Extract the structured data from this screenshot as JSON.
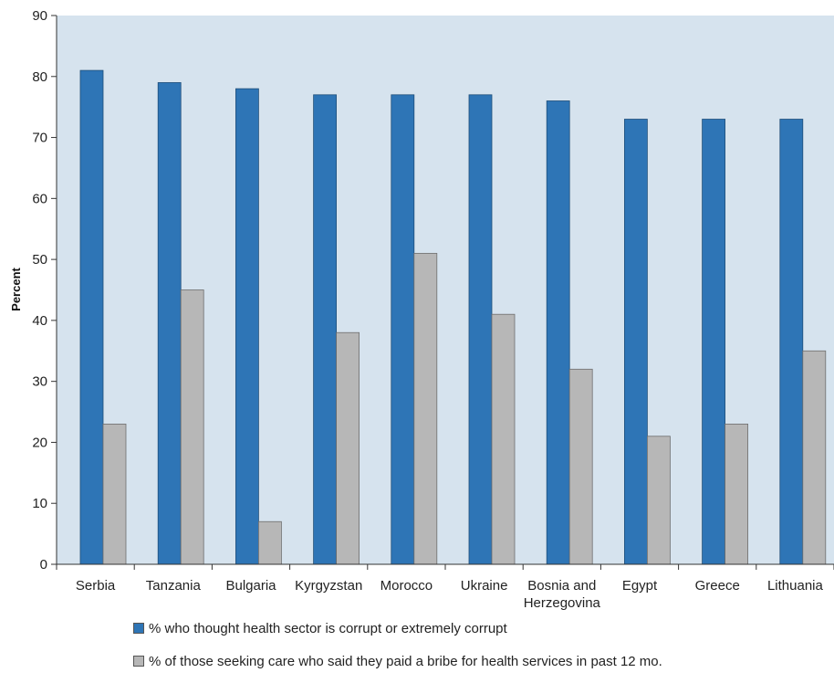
{
  "chart_data": {
    "type": "bar",
    "title": "",
    "xlabel": "",
    "ylabel": "Percent",
    "ylim": [
      0,
      90
    ],
    "yticks": [
      0,
      10,
      20,
      30,
      40,
      50,
      60,
      70,
      80,
      90
    ],
    "categories": [
      [
        "Serbia"
      ],
      [
        "Tanzania"
      ],
      [
        "Bulgaria"
      ],
      [
        "Kyrgyzstan"
      ],
      [
        "Morocco"
      ],
      [
        "Ukraine"
      ],
      [
        "Bosnia and",
        "Herzegovina"
      ],
      [
        "Egypt"
      ],
      [
        "Greece"
      ],
      [
        "Lithuania"
      ]
    ],
    "series": [
      {
        "name": "% who thought health sector is corrupt or extremely corrupt",
        "color": "#2e75b6",
        "values": [
          81,
          79,
          78,
          77,
          77,
          77,
          76,
          73,
          73,
          73
        ]
      },
      {
        "name": "% of those seeking care who said they paid a bribe for health services in past 12 mo.",
        "color": "#b7b7b7",
        "values": [
          23,
          45,
          7,
          38,
          51,
          41,
          32,
          21,
          23,
          35
        ]
      }
    ],
    "plot_background": "#d6e3ee",
    "grid": false,
    "legend_position": "bottom"
  }
}
